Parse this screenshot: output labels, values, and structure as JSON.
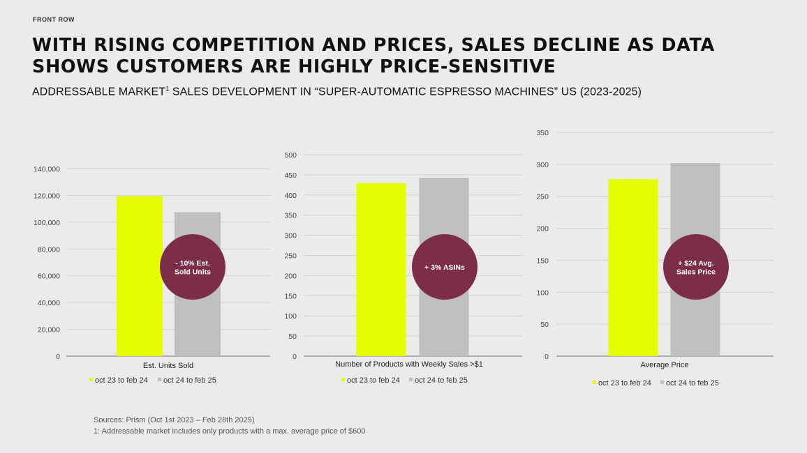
{
  "header": {
    "brand": "FRONT ROW",
    "title": "WITH RISING COMPETITION AND PRICES, SALES DECLINE AS DATA SHOWS CUSTOMERS ARE HIGHLY PRICE-SENSITIVE",
    "subtitle": "ADDRESSABLE MARKET",
    "subtitle_sup": "1",
    "subtitle_rest": " SALES DEVELOPMENT IN “SUPER-AUTOMATIC ESPRESSO MACHINES” US (2023-2025)"
  },
  "chart_data": [
    {
      "type": "bar",
      "categories": [
        "Est. Units Sold"
      ],
      "series": [
        {
          "name": "oct 23 to feb 24",
          "color": "#e5ff00",
          "values": [
            119500
          ]
        },
        {
          "name": "oct 24 to feb 25",
          "color": "#bfbfbf",
          "values": [
            107500
          ]
        }
      ],
      "ylim": [
        0,
        140000
      ],
      "yticks": [
        "0",
        "20,000",
        "40,000",
        "60,000",
        "80,000",
        "100,000",
        "120,000",
        "140,000"
      ],
      "grid": true,
      "legend": "bottom",
      "annotation": {
        "text": [
          "- 10% Est.",
          "Sold Units"
        ],
        "color": "#7b2d4a"
      }
    },
    {
      "type": "bar",
      "categories": [
        "Number of Products with Weekly Sales >$1"
      ],
      "series": [
        {
          "name": "oct 23 to feb 24",
          "color": "#e5ff00",
          "values": [
            429
          ]
        },
        {
          "name": "oct 24 to feb 25",
          "color": "#bfbfbf",
          "values": [
            443
          ]
        }
      ],
      "ylim": [
        0,
        500
      ],
      "yticks": [
        "0",
        "50",
        "100",
        "150",
        "200",
        "250",
        "300",
        "350",
        "400",
        "450",
        "500"
      ],
      "grid": true,
      "legend": "bottom",
      "annotation": {
        "text": [
          "+ 3% ASINs"
        ],
        "color": "#7b2d4a"
      }
    },
    {
      "type": "bar",
      "categories": [
        "Average Price"
      ],
      "series": [
        {
          "name": "oct 23 to feb 24",
          "color": "#e5ff00",
          "values": [
            277
          ]
        },
        {
          "name": "oct 24 to feb 25",
          "color": "#bfbfbf",
          "values": [
            302
          ]
        }
      ],
      "ylim": [
        0,
        350
      ],
      "yticks": [
        "0",
        "50",
        "100",
        "150",
        "200",
        "250",
        "300",
        "350"
      ],
      "grid": true,
      "legend": "bottom",
      "annotation": {
        "text": [
          "+ $24 Avg.",
          "Sales Price"
        ],
        "color": "#7b2d4a"
      }
    }
  ],
  "footnotes": {
    "source": "Sources: Prism (Oct 1st 2023 – Feb 28th 2025)",
    "note": "1: Addressable market includes only products with a max. average price of $600"
  }
}
